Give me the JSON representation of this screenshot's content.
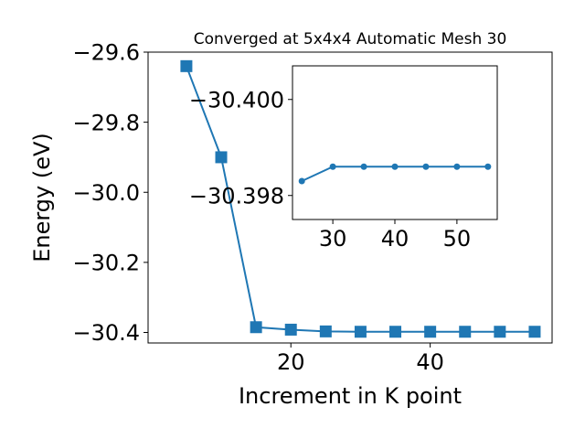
{
  "chart_data": [
    {
      "type": "line",
      "title": "Converged at 5x4x4 Automatic Mesh 30",
      "xlabel": "Increment in K point",
      "ylabel": "Energy (eV)",
      "xlim": [
        -0.5,
        57.5
      ],
      "ylim": [
        -30.43,
        -29.6
      ],
      "x_ticks": [
        {
          "value": 20,
          "label": "20"
        },
        {
          "value": 40,
          "label": "40"
        }
      ],
      "y_ticks": [
        {
          "value": -29.6,
          "label": "−29.6"
        },
        {
          "value": -29.8,
          "label": "−29.8"
        },
        {
          "value": -30.0,
          "label": "−30.0"
        },
        {
          "value": -30.2,
          "label": "−30.2"
        },
        {
          "value": -30.4,
          "label": "−30.4"
        }
      ],
      "grid": false,
      "marker": "square",
      "color": "#1f77b4",
      "series": [
        {
          "x": [
            5,
            10,
            15,
            20,
            25,
            30,
            35,
            40,
            45,
            50,
            55
          ],
          "y": [
            -29.64,
            -29.9,
            -30.385,
            -30.392,
            -30.397,
            -30.398,
            -30.398,
            -30.398,
            -30.398,
            -30.398,
            -30.398
          ]
        }
      ]
    },
    {
      "type": "line",
      "title": "",
      "xlabel": "",
      "ylabel": "",
      "xlim": [
        23.5,
        56.5
      ],
      "ylim": [
        -30.3975,
        -30.4007
      ],
      "y_axis_inverted": true,
      "x_ticks": [
        {
          "value": 30,
          "label": "30"
        },
        {
          "value": 40,
          "label": "40"
        },
        {
          "value": 50,
          "label": "50"
        }
      ],
      "y_ticks": [
        {
          "value": -30.4,
          "label": "−30.400"
        },
        {
          "value": -30.398,
          "label": "−30.398"
        }
      ],
      "grid": false,
      "marker": "circle",
      "color": "#1f77b4",
      "series": [
        {
          "x": [
            25,
            30,
            35,
            40,
            45,
            50,
            55
          ],
          "y": [
            -30.3983,
            -30.3986,
            -30.3986,
            -30.3986,
            -30.3986,
            -30.3986,
            -30.3986
          ]
        }
      ]
    }
  ]
}
